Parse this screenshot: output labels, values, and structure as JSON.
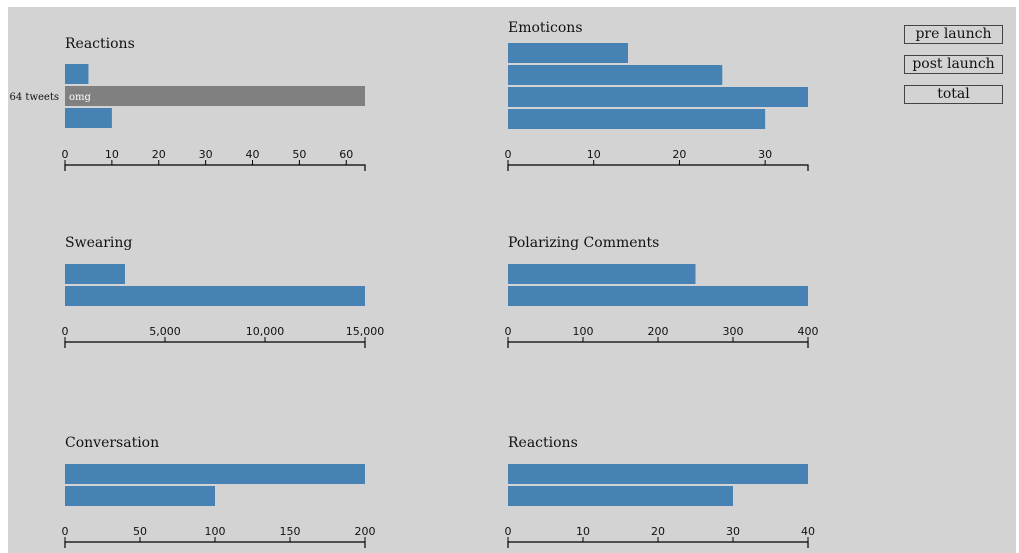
{
  "buttons": [
    "pre launch",
    "post launch",
    "total"
  ],
  "colors": {
    "bar": "#4682b4",
    "highlight": "#808080",
    "background": "#d3d3d3"
  },
  "highlight": {
    "chart": 0,
    "bar": 1,
    "side_label": "64 tweets",
    "bar_label": "omg"
  },
  "chart_data": [
    {
      "type": "bar",
      "orientation": "horizontal",
      "title": "Reactions",
      "values": [
        5,
        64,
        10
      ],
      "xlim": [
        0,
        64
      ],
      "ticks": [
        0,
        10,
        20,
        30,
        40,
        50,
        60
      ],
      "tick_labels": [
        "0",
        "10",
        "20",
        "30",
        "40",
        "50",
        "60"
      ]
    },
    {
      "type": "bar",
      "orientation": "horizontal",
      "title": "Emoticons",
      "values": [
        14,
        25,
        35,
        30
      ],
      "xlim": [
        0,
        35
      ],
      "ticks": [
        0,
        10,
        20,
        30
      ],
      "tick_labels": [
        "0",
        "10",
        "20",
        "30"
      ]
    },
    {
      "type": "bar",
      "orientation": "horizontal",
      "title": "Swearing",
      "values": [
        3000,
        15000
      ],
      "xlim": [
        0,
        15000
      ],
      "ticks": [
        0,
        5000,
        10000,
        15000
      ],
      "tick_labels": [
        "0",
        "5,000",
        "10,000",
        "15,000"
      ]
    },
    {
      "type": "bar",
      "orientation": "horizontal",
      "title": "Polarizing Comments",
      "values": [
        250,
        400
      ],
      "xlim": [
        0,
        400
      ],
      "ticks": [
        0,
        100,
        200,
        300,
        400
      ],
      "tick_labels": [
        "0",
        "100",
        "200",
        "300",
        "400"
      ]
    },
    {
      "type": "bar",
      "orientation": "horizontal",
      "title": "Conversation",
      "values": [
        200,
        100
      ],
      "xlim": [
        0,
        200
      ],
      "ticks": [
        0,
        50,
        100,
        150,
        200
      ],
      "tick_labels": [
        "0",
        "50",
        "100",
        "150",
        "200"
      ]
    },
    {
      "type": "bar",
      "orientation": "horizontal",
      "title": "Reactions",
      "values": [
        40,
        30
      ],
      "xlim": [
        0,
        40
      ],
      "ticks": [
        0,
        10,
        20,
        30,
        40
      ],
      "tick_labels": [
        "0",
        "10",
        "20",
        "30",
        "40"
      ]
    }
  ]
}
